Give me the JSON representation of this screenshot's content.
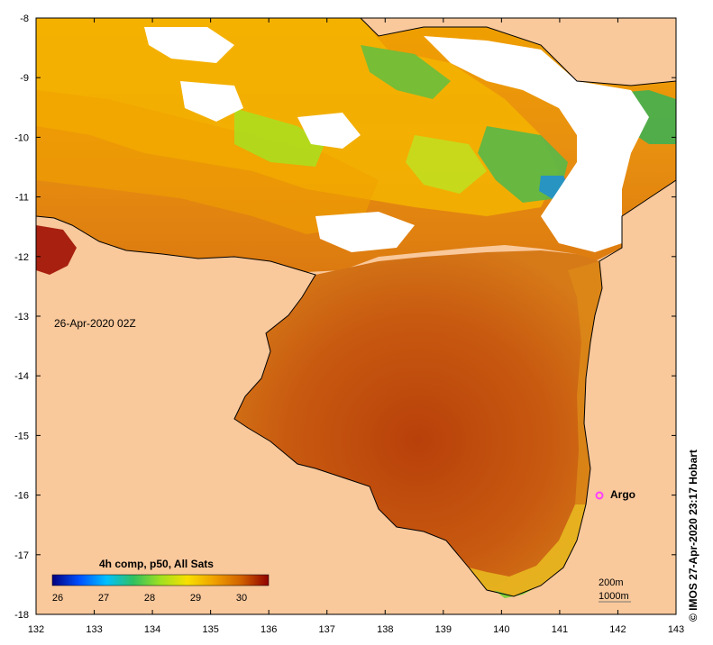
{
  "map": {
    "timestamp": "26-Apr-2020 02Z",
    "x_ticks": [
      "132",
      "133",
      "134",
      "135",
      "136",
      "137",
      "138",
      "139",
      "140",
      "141",
      "142",
      "143"
    ],
    "y_ticks": [
      "-8",
      "-9",
      "-10",
      "-11",
      "-12",
      "-13",
      "-14",
      "-15",
      "-16",
      "-17",
      "-18"
    ],
    "land_color": "#f9c89b",
    "cloud_color": "#ffffff"
  },
  "legend": {
    "title": "4h comp, p50, All Sats",
    "labels": [
      "26",
      "27",
      "28",
      "29",
      "30"
    ],
    "colors": [
      "#00007f",
      "#0050ff",
      "#00c0ff",
      "#30c060",
      "#a0e020",
      "#f8e000",
      "#f0a000",
      "#d06000",
      "#900000"
    ]
  },
  "argo": {
    "label": "Argo",
    "color": "#ff40ff"
  },
  "depth": {
    "contour1": "200m",
    "contour2": "1000m"
  },
  "credit": "© IMOS 27-Apr-2020 23:17 Hobart"
}
